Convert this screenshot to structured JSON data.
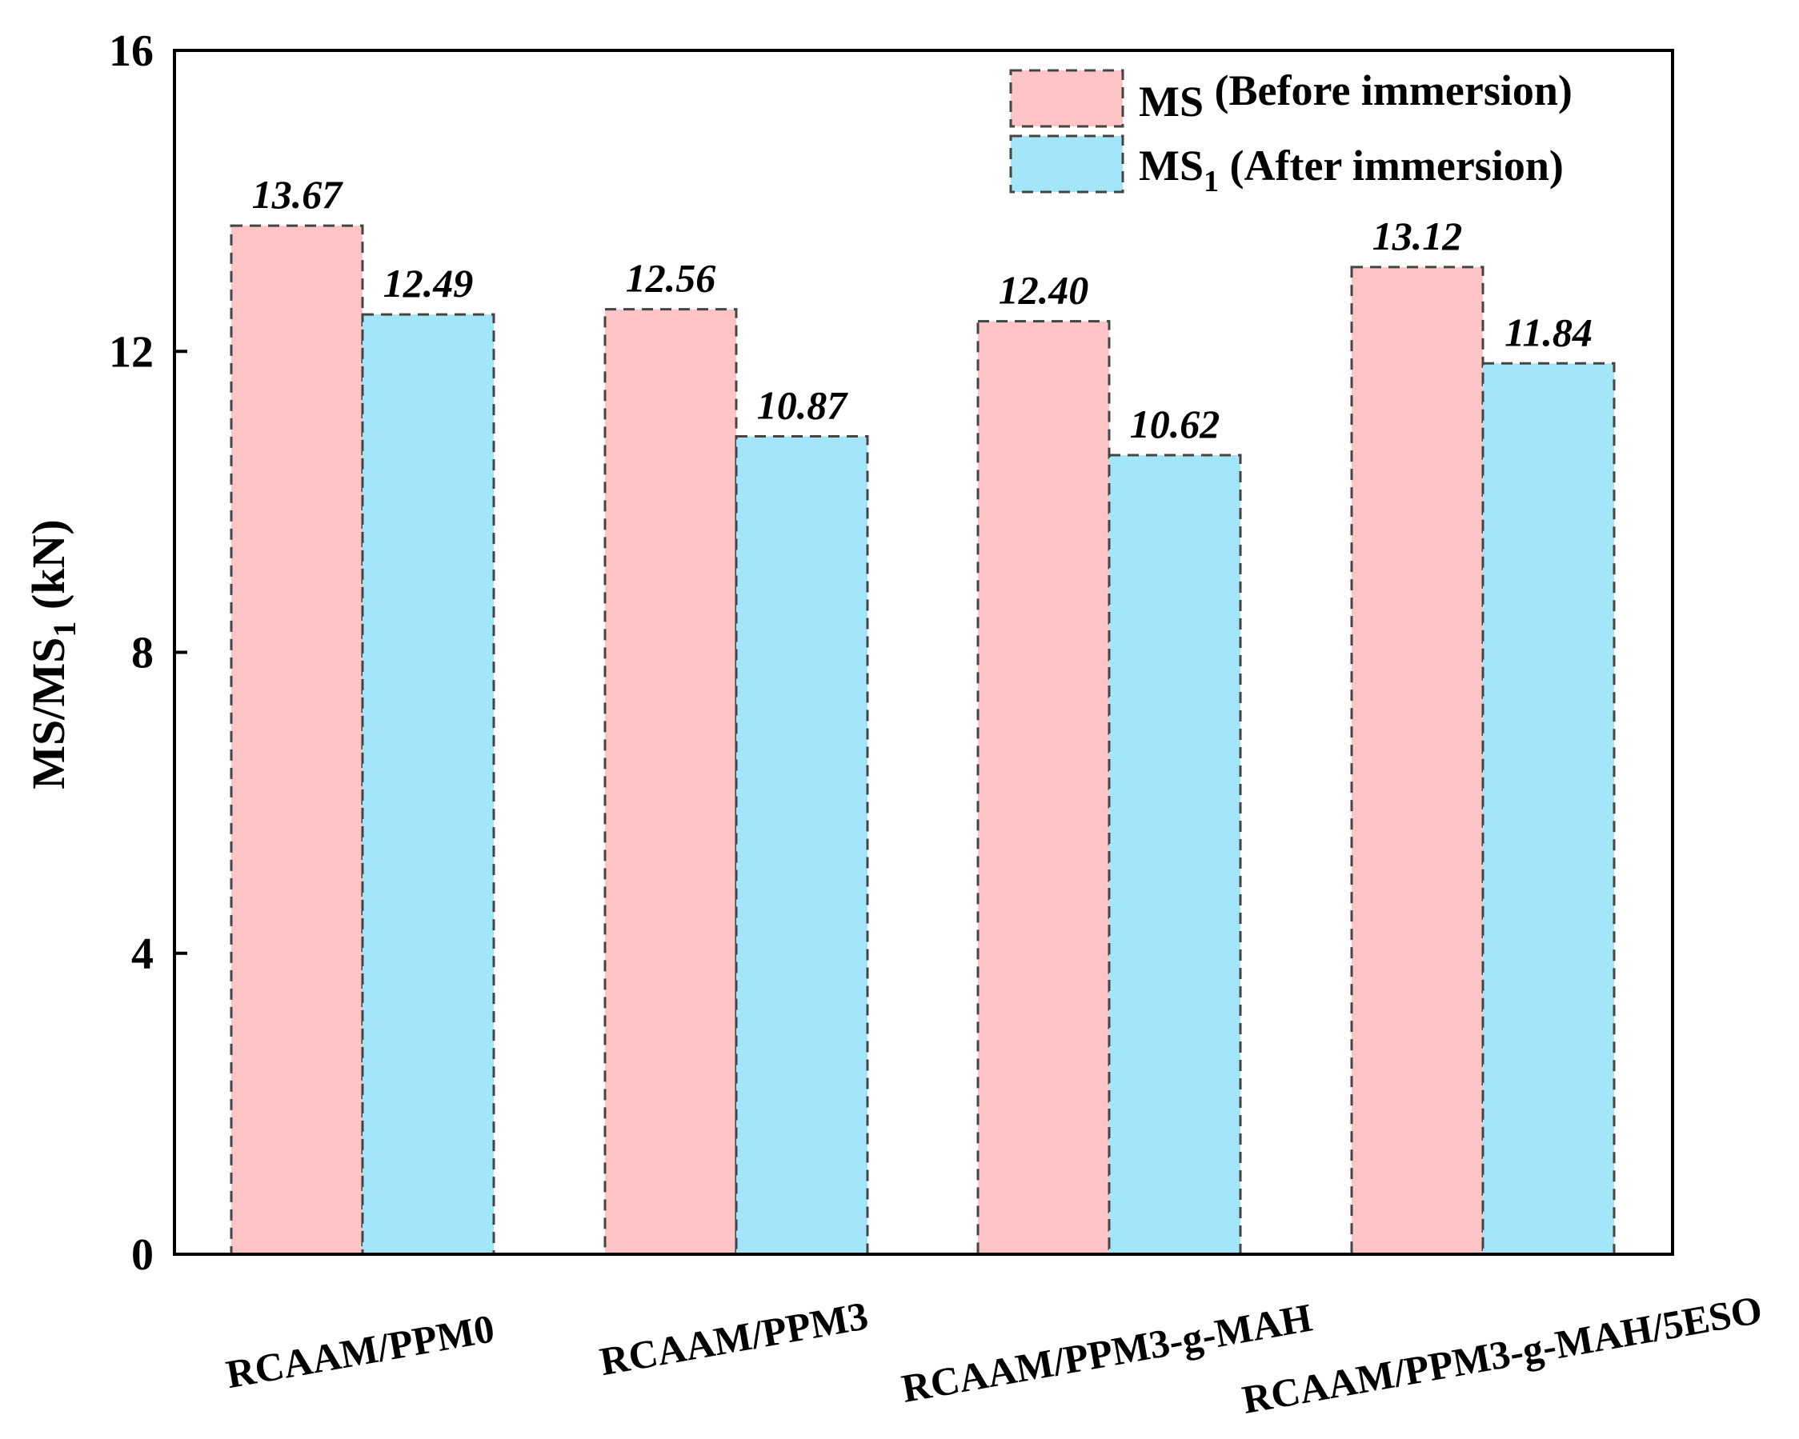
{
  "chart_data": {
    "type": "bar",
    "title": "",
    "xlabel": "",
    "ylabel": "MS/MS1 (kN)",
    "ylabel_parts": {
      "main": "MS/MS",
      "sub": "1",
      "unit": " (kN)"
    },
    "ylim": [
      0,
      16
    ],
    "yticks": [
      "0",
      "4",
      "8",
      "12",
      "16"
    ],
    "grid": false,
    "legend_position": "top-right",
    "categories": [
      "RCAAM/PPM0",
      "RCAAM/PPM3",
      "RCAAM/PPM3-g-MAH",
      "RCAAM/PPM3-g-MAH/5ESO"
    ],
    "series": [
      {
        "name": "MS (Before immersion)",
        "legend_main": "MS",
        "legend_sub": "",
        "legend_rest": " (Before immersion)",
        "color": "#ffc4c6",
        "values": [
          13.67,
          12.56,
          12.4,
          13.12
        ],
        "value_labels": [
          "13.67",
          "12.56",
          "12.40",
          "13.12"
        ]
      },
      {
        "name": "MS1 (After immersion)",
        "legend_main": "MS",
        "legend_sub": "1",
        "legend_rest": " (After immersion)",
        "color": "#a3e6fa",
        "values": [
          12.49,
          10.87,
          10.62,
          11.84
        ],
        "value_labels": [
          "12.49",
          "10.87",
          "10.62",
          "11.84"
        ]
      }
    ]
  }
}
